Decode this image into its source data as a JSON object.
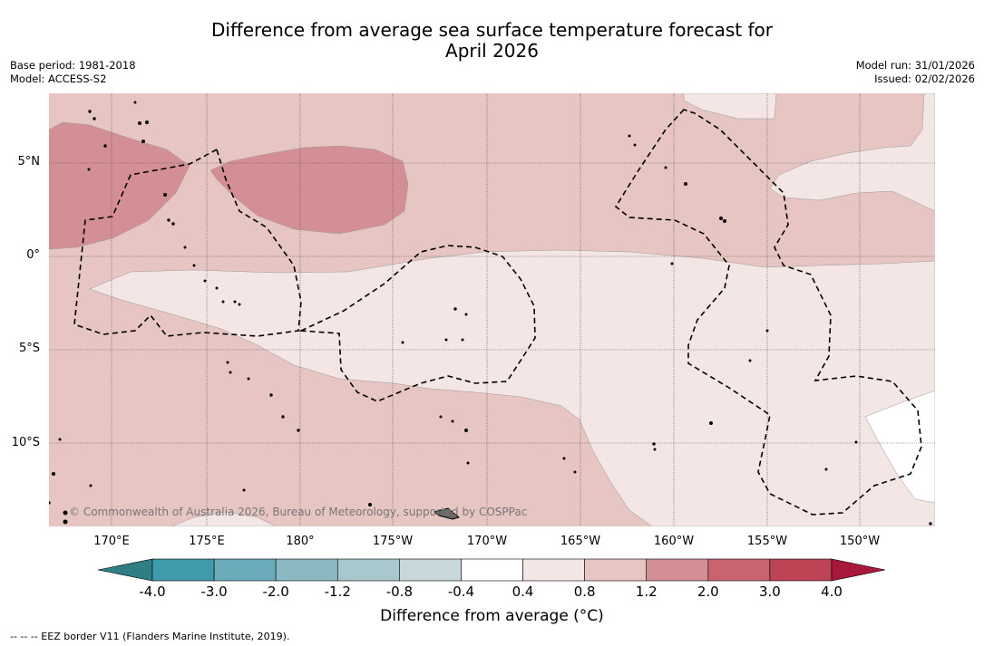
{
  "title_line1": "Difference from average sea surface temperature forecast for",
  "title_line2": "April 2026",
  "base_period": "Base period: 1981-2018",
  "model": "Model: ACCESS-S2",
  "model_run": "Model run: 31/01/2026",
  "issued": "Issued: 02/02/2026",
  "lat_labels": [
    "5°N",
    "0°",
    "5°S",
    "10°S"
  ],
  "lon_labels": [
    "170°E",
    "175°E",
    "180°",
    "175°W",
    "170°W",
    "165°W",
    "160°W",
    "155°W",
    "150°W"
  ],
  "copyright": "© Commonwealth of Australia 2026, Bureau of Meteorology, supported by COSPPac",
  "colorbar": {
    "ticks": [
      "-4.0",
      "-3.0",
      "-2.0",
      "-1.2",
      "-0.8",
      "-0.4",
      "0.4",
      "0.8",
      "1.2",
      "2.0",
      "3.0",
      "4.0"
    ],
    "colors": [
      "#3f9aab",
      "#6aaab9",
      "#8ab8c3",
      "#a9c8cd",
      "#c8d7da",
      "#ffffff",
      "#f4e6e5",
      "#e6c5c2",
      "#d48f95",
      "#c86470",
      "#bc4455"
    ],
    "under_color": "#2e7f84",
    "over_color": "#a8183a",
    "title": "Difference from average ($^\\circ$C)",
    "title_display": "Difference from average (°C)"
  },
  "footer": "--  --  -- EEZ border V11 (Flanders Marine Institute, 2019).",
  "colors": {
    "base": "#e6c5c2",
    "light": "#f4e6e5",
    "warm": "#d48f95",
    "white": "#ffffff"
  }
}
